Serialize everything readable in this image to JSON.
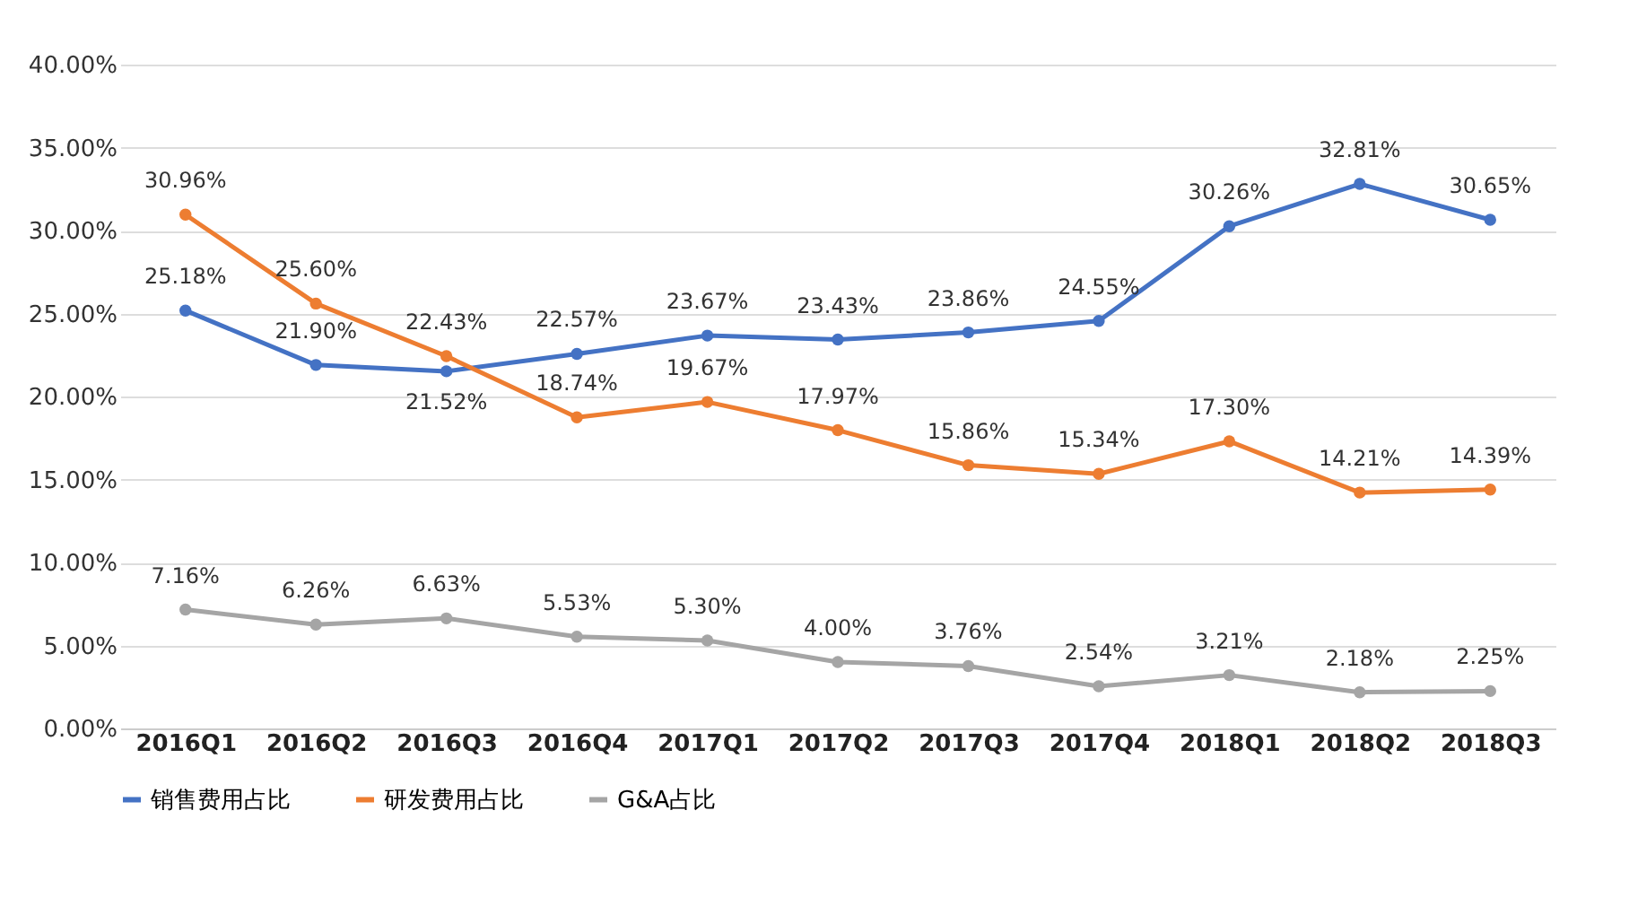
{
  "chart_data": {
    "type": "line",
    "categories": [
      "2016Q1",
      "2016Q2",
      "2016Q3",
      "2016Q4",
      "2017Q1",
      "2017Q2",
      "2017Q3",
      "2017Q4",
      "2018Q1",
      "2018Q2",
      "2018Q3"
    ],
    "series": [
      {
        "name": "销售费用占比",
        "color": "#4472c4",
        "values": [
          25.18,
          21.9,
          21.52,
          22.57,
          23.67,
          23.43,
          23.86,
          24.55,
          30.26,
          32.81,
          30.65
        ],
        "value_labels": [
          "25.18%",
          "21.90%",
          "21.52%",
          "22.57%",
          "23.67%",
          "23.43%",
          "23.86%",
          "24.55%",
          "30.26%",
          "32.81%",
          "30.65%"
        ]
      },
      {
        "name": "研发费用占比",
        "color": "#ed7d31",
        "values": [
          30.96,
          25.6,
          22.43,
          18.74,
          19.67,
          17.97,
          15.86,
          15.34,
          17.3,
          14.21,
          14.39
        ],
        "value_labels": [
          "30.96%",
          "25.60%",
          "22.43%",
          "18.74%",
          "19.67%",
          "17.97%",
          "15.86%",
          "15.34%",
          "17.30%",
          "14.21%",
          "14.39%"
        ]
      },
      {
        "name": "G&A占比",
        "color": "#a5a5a5",
        "values": [
          7.16,
          6.26,
          6.63,
          5.53,
          5.3,
          4.0,
          3.76,
          2.54,
          3.21,
          2.18,
          2.25
        ],
        "value_labels": [
          "7.16%",
          "6.26%",
          "6.63%",
          "5.53%",
          "5.30%",
          "4.00%",
          "3.76%",
          "2.54%",
          "3.21%",
          "2.18%",
          "2.25%"
        ]
      }
    ],
    "ylim": [
      0,
      40
    ],
    "yticks": [
      {
        "value": 0,
        "label": "0.00%"
      },
      {
        "value": 5,
        "label": "5.00%"
      },
      {
        "value": 10,
        "label": "10.00%"
      },
      {
        "value": 15,
        "label": "15.00%"
      },
      {
        "value": 20,
        "label": "20.00%"
      },
      {
        "value": 25,
        "label": "25.00%"
      },
      {
        "value": 30,
        "label": "30.00%"
      },
      {
        "value": 35,
        "label": "35.00%"
      },
      {
        "value": 40,
        "label": "40.00%"
      }
    ],
    "grid": "y",
    "legend": "bottom",
    "marker": "circle",
    "line_style": "solid"
  }
}
